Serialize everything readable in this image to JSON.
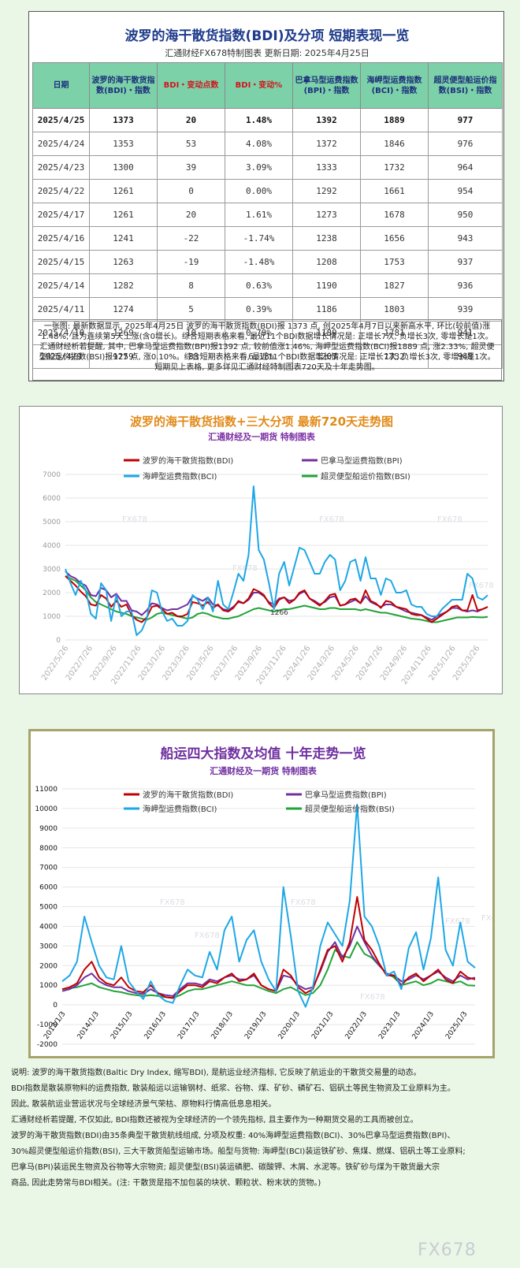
{
  "table": {
    "title": "波罗的海干散货指数(BDI)及分项  短期表现一览",
    "subtitle": "汇通财经FX678特制图表      更新日期: 2025年4月25日",
    "headers": [
      "日期",
      "波罗的海干散货指数(BDI)・指数",
      "BDI・变动点数",
      "BDI・变动%",
      "巴拿马型运费指数(BPI)・指数",
      "海岬型运费指数(BCI)・指数",
      "超灵便型船运价指数(BSI)・指数"
    ],
    "rows": [
      [
        "2025/4/25",
        "1373",
        "20",
        "1.48%",
        "1392",
        "1889",
        "977"
      ],
      [
        "2025/4/24",
        "1353",
        "53",
        "4.08%",
        "1372",
        "1846",
        "976"
      ],
      [
        "2025/4/23",
        "1300",
        "39",
        "3.09%",
        "1333",
        "1732",
        "964"
      ],
      [
        "2025/4/22",
        "1261",
        "0",
        "0.00%",
        "1292",
        "1661",
        "954"
      ],
      [
        "2025/4/17",
        "1261",
        "20",
        "1.61%",
        "1273",
        "1678",
        "950"
      ],
      [
        "2025/4/16",
        "1241",
        "-22",
        "-1.74%",
        "1238",
        "1656",
        "943"
      ],
      [
        "2025/4/15",
        "1263",
        "-19",
        "-1.48%",
        "1208",
        "1753",
        "937"
      ],
      [
        "2025/4/14",
        "1282",
        "8",
        "0.63%",
        "1190",
        "1827",
        "936"
      ],
      [
        "2025/4/11",
        "1274",
        "5",
        "0.39%",
        "1186",
        "1803",
        "939"
      ],
      [
        "2025/4/10",
        "1269",
        "10",
        "0.79%",
        "1189",
        "1781",
        "941"
      ],
      [
        "2025/4/9",
        "1259",
        "-83",
        "-6.18%",
        "1203",
        "1732",
        "948"
      ]
    ],
    "summary": "一张图: 最新数据显示, 2025年4月25日 波罗的海干散货指数(BDI)报 1373 点, 创2025年4月7日以来新高水平, 环比(较前值)涨1.48%, 且为连续第5天上涨(含0增长)。综合短期表格来看, 最近11个BDI数据增长情况是: 正增长7次, 负增长3次, 零增长是1次。汇通财经析若提醒, 其中, 巴拿马型运费指数(BPI)报1392 点, 较前值涨1.46%, 海岬型运费指数(BCI)报1889 点, 涨2.33%, 超灵便型船运价指数(BSI)报977 点, 涨0.10%。综合短期表格来看, 最近11个BDI数据增长情况是: 正增长7次, 负增长3次, 零增长是1次。短期见上表格, 更多详见汇通财经特制图表720天及十年走势图。"
  },
  "colors": {
    "BDI": "#c00000",
    "BPI": "#7030a0",
    "BCI": "#1ea7e6",
    "BSI": "#22a338",
    "chart1_title": "#e28a19",
    "chart1_subtitle": "#7b2fa3",
    "chart2_title": "#7030a0",
    "chart2_subtitle": "#7030a0",
    "table_header_bg": "#7cd1a9"
  },
  "chart_data": [
    {
      "type": "line",
      "title": "波罗的海干散货指数+三大分项  最新720天走势图",
      "subtitle": "汇通财经及一期货  特制图表",
      "xlabel": "",
      "ylabel": "",
      "ylim": [
        0,
        7000
      ],
      "yticks": [
        "0",
        "1000",
        "2000",
        "3000",
        "4000",
        "5000",
        "6000",
        "7000"
      ],
      "x_tick_labels": [
        "2022/5/26",
        "2022/7/26",
        "2022/9/26",
        "2022/11/26",
        "2023/1/26",
        "2023/3/26",
        "2023/5/26",
        "2023/7/26",
        "2023/9/26",
        "2023/11/26",
        "2024/1/26",
        "2024/3/26",
        "2024/5/26",
        "2024/7/26",
        "2024/9/26",
        "2024/11/26",
        "2025/1/26",
        "2025/3/26"
      ],
      "legend_position": "top",
      "watermark": "FX678",
      "annotation": "1266",
      "series": [
        {
          "name": "波罗的海干散货指数(BDI)",
          "key": "BDI",
          "values": [
            2700,
            2500,
            2300,
            2050,
            1850,
            1500,
            1450,
            1900,
            1750,
            1400,
            1650,
            1400,
            1500,
            1050,
            850,
            750,
            950,
            1400,
            1450,
            1300,
            1100,
            1150,
            1000,
            1000,
            1100,
            1600,
            1550,
            1450,
            1600,
            1350,
            1500,
            1250,
            1200,
            1350,
            1650,
            1550,
            1750,
            2150,
            2050,
            1900,
            1550,
            1350,
            1700,
            1800,
            1550,
            1700,
            2000,
            2100,
            1750,
            1600,
            1450,
            1650,
            1900,
            1950,
            1450,
            1500,
            1700,
            1750,
            1550,
            2100,
            1650,
            1550,
            1350,
            1650,
            1600,
            1400,
            1350,
            1300,
            1100,
            1050,
            1050,
            900,
            750,
            900,
            1050,
            1200,
            1400,
            1450,
            1250,
            1250,
            1900,
            1250,
            1300,
            1400
          ]
        },
        {
          "name": "巴拿马型运费指数(BPI)",
          "key": "BPI",
          "values": [
            2900,
            2700,
            2600,
            2400,
            2300,
            1900,
            1850,
            2200,
            2100,
            1800,
            1950,
            1650,
            1650,
            1250,
            1200,
            1050,
            1250,
            1550,
            1500,
            1350,
            1250,
            1300,
            1300,
            1400,
            1500,
            1850,
            1750,
            1650,
            1800,
            1500,
            1450,
            1300,
            1250,
            1400,
            1600,
            1550,
            1700,
            2000,
            2000,
            1850,
            1600,
            1500,
            1750,
            1800,
            1650,
            1700,
            1950,
            2050,
            1750,
            1650,
            1500,
            1600,
            1800,
            1850,
            1450,
            1500,
            1600,
            1700,
            1550,
            1850,
            1600,
            1500,
            1400,
            1500,
            1500,
            1400,
            1300,
            1200,
            1150,
            1100,
            1050,
            950,
            850,
            1000,
            1100,
            1200,
            1350,
            1350,
            1250,
            1200,
            1250,
            1200,
            1300,
            1392
          ]
        },
        {
          "name": "海岬型运费指数(BCI)",
          "key": "BCI",
          "values": [
            3000,
            2400,
            1900,
            2500,
            2100,
            1100,
            900,
            2400,
            2100,
            800,
            1900,
            1000,
            1200,
            1200,
            200,
            400,
            900,
            2100,
            2000,
            1200,
            800,
            900,
            600,
            600,
            800,
            1900,
            1700,
            1300,
            1800,
            1200,
            2500,
            1500,
            1300,
            2000,
            2800,
            2500,
            3600,
            6500,
            3800,
            3400,
            2400,
            1300,
            2800,
            3300,
            2300,
            3100,
            3900,
            3800,
            3300,
            2800,
            2800,
            3300,
            3600,
            3400,
            2100,
            2500,
            3300,
            3400,
            2500,
            3500,
            2600,
            2600,
            1900,
            2600,
            2500,
            2000,
            2000,
            2100,
            1500,
            1400,
            1400,
            1100,
            1000,
            1000,
            1300,
            1500,
            1700,
            1700,
            1700,
            2800,
            2600,
            1800,
            1700,
            1889
          ]
        },
        {
          "name": "超灵便型船运价指数(BSI)",
          "key": "BSI",
          "values": [
            2700,
            2600,
            2500,
            2300,
            2100,
            1800,
            1600,
            1500,
            1400,
            1300,
            1200,
            1150,
            1100,
            1000,
            950,
            900,
            850,
            950,
            1100,
            1150,
            1100,
            1050,
            1000,
            950,
            900,
            950,
            1100,
            1150,
            1100,
            1000,
            950,
            900,
            900,
            950,
            1000,
            1100,
            1200,
            1300,
            1350,
            1300,
            1250,
            1200,
            1250,
            1300,
            1300,
            1350,
            1400,
            1450,
            1400,
            1350,
            1300,
            1300,
            1350,
            1350,
            1300,
            1300,
            1300,
            1300,
            1250,
            1300,
            1250,
            1200,
            1150,
            1150,
            1100,
            1050,
            1000,
            950,
            900,
            880,
            850,
            800,
            750,
            750,
            800,
            850,
            900,
            950,
            950,
            950,
            970,
            960,
            950,
            977
          ]
        }
      ]
    },
    {
      "type": "line",
      "title": "船运四大指数及均值  十年走势一览",
      "subtitle": "汇通财经及一期货  特制图表",
      "xlabel": "",
      "ylabel": "",
      "ylim": [
        -2000,
        11000
      ],
      "yticks": [
        "-2000",
        "-1000",
        "0",
        "1000",
        "2000",
        "3000",
        "4000",
        "5000",
        "6000",
        "7000",
        "8000",
        "9000",
        "10000",
        "11000"
      ],
      "x_tick_labels": [
        "2013/1/3",
        "2014/1/3",
        "2015/1/3",
        "2016/1/3",
        "2017/1/3",
        "2018/1/3",
        "2019/1/3",
        "2020/1/3",
        "2021/1/3",
        "2022/1/3",
        "2023/1/3",
        "2024/1/3",
        "2025/1/3"
      ],
      "legend_position": "top",
      "watermark": "FX678",
      "series": [
        {
          "name": "波罗的海干散货指数(BDI)",
          "key": "BDI",
          "values": [
            800,
            900,
            1100,
            1800,
            2200,
            1400,
            1100,
            1000,
            1400,
            900,
            700,
            650,
            1000,
            600,
            400,
            350,
            700,
            1000,
            1000,
            900,
            1200,
            1100,
            1400,
            1600,
            1200,
            1300,
            1600,
            1000,
            800,
            700,
            1800,
            1500,
            900,
            600,
            800,
            1800,
            2800,
            3000,
            2200,
            3200,
            5500,
            3300,
            2800,
            2100,
            1500,
            1500,
            1000,
            1400,
            1600,
            1200,
            1500,
            1800,
            1300,
            1100,
            1700,
            1400,
            1300
          ]
        },
        {
          "name": "巴拿马型运费指数(BPI)",
          "key": "BPI",
          "values": [
            700,
            800,
            1000,
            1400,
            1600,
            1200,
            1000,
            900,
            900,
            700,
            600,
            550,
            800,
            600,
            500,
            450,
            800,
            1100,
            1100,
            1000,
            1300,
            1200,
            1400,
            1500,
            1300,
            1300,
            1500,
            1000,
            800,
            700,
            1500,
            1400,
            1000,
            800,
            900,
            1700,
            2700,
            3200,
            2400,
            3000,
            4000,
            3200,
            2500,
            2000,
            1600,
            1500,
            1200,
            1300,
            1500,
            1300,
            1500,
            1700,
            1400,
            1200,
            1500,
            1300,
            1392
          ]
        },
        {
          "name": "海岬型运费指数(BCI)",
          "key": "BCI",
          "values": [
            1200,
            1500,
            2200,
            4500,
            3200,
            2000,
            1400,
            1300,
            3000,
            1200,
            700,
            300,
            1200,
            500,
            200,
            100,
            1000,
            1800,
            1500,
            1400,
            2700,
            1800,
            3800,
            4500,
            2200,
            3300,
            3800,
            2200,
            1300,
            700,
            6000,
            3500,
            700,
            -100,
            900,
            3000,
            4200,
            3600,
            3000,
            5300,
            10200,
            4500,
            4000,
            3000,
            1500,
            1700,
            800,
            2900,
            3700,
            1800,
            3400,
            6500,
            2800,
            2000,
            4200,
            2200,
            1889
          ]
        },
        {
          "name": "超灵便型船运价指数(BSI)",
          "key": "BSI",
          "values": [
            800,
            850,
            900,
            1000,
            1100,
            900,
            800,
            700,
            650,
            550,
            500,
            450,
            500,
            450,
            400,
            350,
            500,
            700,
            800,
            800,
            900,
            1000,
            1100,
            1200,
            1100,
            1000,
            1000,
            850,
            700,
            600,
            800,
            900,
            700,
            500,
            600,
            1000,
            1800,
            2800,
            2500,
            2400,
            3200,
            2600,
            2400,
            2000,
            1600,
            1400,
            1000,
            1100,
            1200,
            1000,
            1100,
            1300,
            1200,
            1100,
            1200,
            1000,
            977
          ]
        }
      ]
    }
  ],
  "note": {
    "lines": [
      "说明: 波罗的海干散货指数(Baltic Dry Index, 缩写BDI), 是航运业经济指标, 它反映了航运业的干散货交易量的动态。",
      "BDI指数是散装原物料的运费指数, 散装船运以运输钢材、纸浆、谷物、煤、矿砂、磷矿石、铝矾土等民生物资及工业原料为主。",
      "因此, 散装航运业营运状况与全球经济景气荣枯、原物料行情高低息息相关。",
      "汇通财经析若提醒, 不仅如此, BDI指数还被视为全球经济的一个领先指标, 且主要作为一种期货交易的工具而被创立。",
      "波罗的海干散货指数(BDI)由35条典型干散货航线组成, 分项及权重: 40%海岬型运费指数(BCI)、30%巴拿马型运费指数(BPI)、",
      "30%超灵便型船运价指数(BSI), 三大干散货船型运输市场。船型与货物: 海岬型(BCI)装运铁矿砂、焦煤、燃煤、铝矾土等工业原料;",
      "巴拿马(BPI)装运民生物资及谷物等大宗物资; 超灵便型(BSI)装运磷肥、碳酸钾、木屑、水泥等。铁矿砂与煤为干散货最大宗",
      "商品, 因此走势常与BDI相关。(注: 干散货是指不加包装的块状、颗粒状、粉末状的货物。)"
    ]
  },
  "footer": {
    "logo": "FX678"
  }
}
